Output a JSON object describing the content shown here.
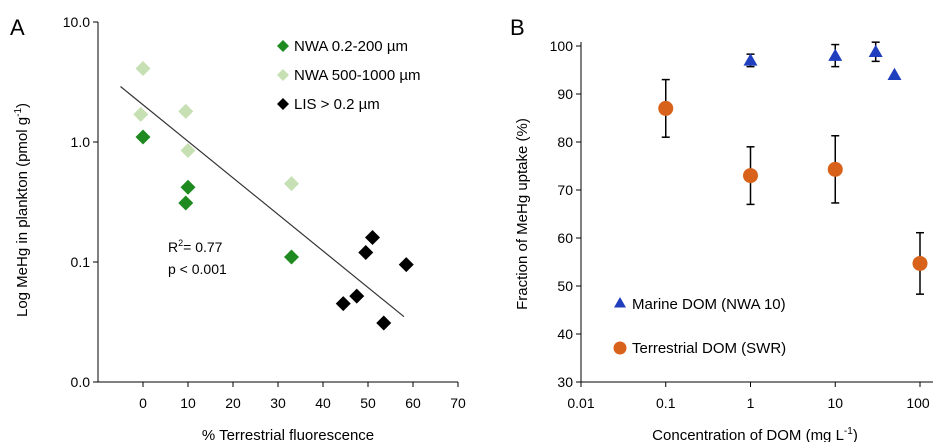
{
  "chart_data": [
    {
      "panel_label": "A",
      "type": "scatter",
      "title": "",
      "xlabel": "% Terrestrial fluorescence",
      "ylabel": "Log MeHg in plankton (pmol g",
      "ylabel_sup": "-1",
      "ylabel_end": ")",
      "y_scale": "log",
      "xlim": [
        -10,
        70
      ],
      "ylim": [
        0.01,
        10
      ],
      "x_ticks": [
        0,
        10,
        20,
        30,
        40,
        50,
        60,
        70
      ],
      "y_ticks": [
        {
          "value": 0.01,
          "label": "0.0"
        },
        {
          "value": 0.1,
          "label": "0.1"
        },
        {
          "value": 1,
          "label": "1.0"
        },
        {
          "value": 10,
          "label": "10.0"
        }
      ],
      "grid": false,
      "legend_position": "top-right",
      "series": [
        {
          "name": "NWA 0.2-200 µm",
          "color": "#1f8a1f",
          "marker": "diamond",
          "points": [
            [
              0,
              1.1
            ],
            [
              10,
              0.42
            ],
            [
              9.5,
              0.31
            ],
            [
              33,
              0.11
            ]
          ]
        },
        {
          "name": "NWA 500-1000 µm",
          "color": "#c6e0b4",
          "marker": "diamond",
          "points": [
            [
              0,
              4.1
            ],
            [
              -0.5,
              1.7
            ],
            [
              9.5,
              1.8
            ],
            [
              10,
              0.85
            ],
            [
              33,
              0.45
            ]
          ]
        },
        {
          "name": "LIS > 0.2 µm",
          "color": "#000000",
          "marker": "diamond",
          "points": [
            [
              44.5,
              0.045
            ],
            [
              47.5,
              0.052
            ],
            [
              49.5,
              0.12
            ],
            [
              51,
              0.16
            ],
            [
              53.5,
              0.031
            ],
            [
              58.5,
              0.095
            ]
          ]
        }
      ],
      "trendline": {
        "x": [
          -5,
          58
        ],
        "y": [
          2.9,
          0.035
        ]
      },
      "annotation": {
        "r2_prefix": "R",
        "r2_sup": "2",
        "r2_value": "= 0.77",
        "p_value": "p < 0.001"
      }
    },
    {
      "panel_label": "B",
      "type": "scatter",
      "title": "",
      "xlabel": "Concentration of DOM (mg L",
      "xlabel_sup": "-1",
      "xlabel_end": ")",
      "ylabel": "Fraction of MeHg uptake (%)",
      "x_scale": "log",
      "xlim": [
        0.01,
        100
      ],
      "ylim": [
        30,
        100
      ],
      "x_ticks": [
        {
          "value": 0.01,
          "label": "0.01"
        },
        {
          "value": 0.1,
          "label": "0.1"
        },
        {
          "value": 1,
          "label": "1"
        },
        {
          "value": 10,
          "label": "10"
        },
        {
          "value": 100,
          "label": "100"
        }
      ],
      "y_ticks": [
        30,
        40,
        50,
        60,
        70,
        80,
        90,
        100
      ],
      "grid": false,
      "legend_position": "bottom-left",
      "series": [
        {
          "name": "Marine DOM (NWA 10)",
          "color": "#1f3fbf",
          "marker": "triangle",
          "points": [
            {
              "x": 1,
              "y": 97,
              "err": 1.3
            },
            {
              "x": 10,
              "y": 98,
              "err": 2.3
            },
            {
              "x": 30,
              "y": 98.8,
              "err": 2.0
            },
            {
              "x": 50,
              "y": 94,
              "err": 0
            }
          ]
        },
        {
          "name": "Terrestrial DOM (SWR)",
          "color": "#d9621a",
          "marker": "circle",
          "points": [
            {
              "x": 0.1,
              "y": 87,
              "err": 6
            },
            {
              "x": 1,
              "y": 73,
              "err": 6
            },
            {
              "x": 10,
              "y": 74.3,
              "err": 7
            },
            {
              "x": 100,
              "y": 54.7,
              "err": 6.4
            }
          ]
        }
      ]
    }
  ]
}
